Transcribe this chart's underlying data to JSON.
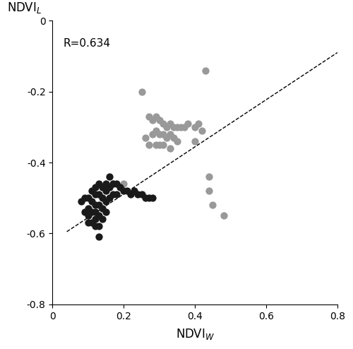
{
  "title": "",
  "xlabel": "NDVI$_{W}$",
  "ylabel": "NDVI$_{L}$",
  "xlim": [
    0,
    0.8
  ],
  "ylim": [
    -0.8,
    0
  ],
  "xticks": [
    0,
    0.2,
    0.4,
    0.6,
    0.8
  ],
  "yticks": [
    0,
    -0.2,
    -0.4,
    -0.6,
    -0.8
  ],
  "R_label": "R=0.634",
  "dashed_line": {
    "x": [
      0.04,
      0.8
    ],
    "y": [
      -0.595,
      -0.09
    ]
  },
  "black_points": [
    [
      0.08,
      -0.51
    ],
    [
      0.09,
      -0.5
    ],
    [
      0.09,
      -0.54
    ],
    [
      0.1,
      -0.5
    ],
    [
      0.1,
      -0.53
    ],
    [
      0.1,
      -0.55
    ],
    [
      0.1,
      -0.57
    ],
    [
      0.11,
      -0.48
    ],
    [
      0.11,
      -0.51
    ],
    [
      0.11,
      -0.54
    ],
    [
      0.11,
      -0.57
    ],
    [
      0.12,
      -0.47
    ],
    [
      0.12,
      -0.49
    ],
    [
      0.12,
      -0.52
    ],
    [
      0.12,
      -0.54
    ],
    [
      0.12,
      -0.56
    ],
    [
      0.12,
      -0.58
    ],
    [
      0.13,
      -0.46
    ],
    [
      0.13,
      -0.49
    ],
    [
      0.13,
      -0.52
    ],
    [
      0.13,
      -0.55
    ],
    [
      0.13,
      -0.58
    ],
    [
      0.13,
      -0.61
    ],
    [
      0.14,
      -0.47
    ],
    [
      0.14,
      -0.5
    ],
    [
      0.14,
      -0.53
    ],
    [
      0.14,
      -0.56
    ],
    [
      0.15,
      -0.46
    ],
    [
      0.15,
      -0.48
    ],
    [
      0.15,
      -0.51
    ],
    [
      0.15,
      -0.54
    ],
    [
      0.16,
      -0.44
    ],
    [
      0.16,
      -0.47
    ],
    [
      0.16,
      -0.5
    ],
    [
      0.17,
      -0.46
    ],
    [
      0.17,
      -0.49
    ],
    [
      0.18,
      -0.46
    ],
    [
      0.18,
      -0.49
    ],
    [
      0.19,
      -0.47
    ],
    [
      0.2,
      -0.48
    ],
    [
      0.21,
      -0.48
    ],
    [
      0.22,
      -0.49
    ],
    [
      0.23,
      -0.48
    ],
    [
      0.24,
      -0.49
    ],
    [
      0.25,
      -0.49
    ],
    [
      0.26,
      -0.5
    ],
    [
      0.27,
      -0.5
    ],
    [
      0.28,
      -0.5
    ]
  ],
  "grey_points": [
    [
      0.17,
      -0.46
    ],
    [
      0.2,
      -0.46
    ],
    [
      0.25,
      -0.2
    ],
    [
      0.26,
      -0.33
    ],
    [
      0.27,
      -0.27
    ],
    [
      0.27,
      -0.35
    ],
    [
      0.28,
      -0.28
    ],
    [
      0.28,
      -0.32
    ],
    [
      0.29,
      -0.27
    ],
    [
      0.29,
      -0.31
    ],
    [
      0.29,
      -0.35
    ],
    [
      0.3,
      -0.28
    ],
    [
      0.3,
      -0.32
    ],
    [
      0.3,
      -0.35
    ],
    [
      0.31,
      -0.29
    ],
    [
      0.31,
      -0.32
    ],
    [
      0.31,
      -0.35
    ],
    [
      0.32,
      -0.3
    ],
    [
      0.32,
      -0.33
    ],
    [
      0.33,
      -0.29
    ],
    [
      0.33,
      -0.32
    ],
    [
      0.33,
      -0.36
    ],
    [
      0.34,
      -0.3
    ],
    [
      0.34,
      -0.33
    ],
    [
      0.35,
      -0.3
    ],
    [
      0.35,
      -0.34
    ],
    [
      0.36,
      -0.3
    ],
    [
      0.37,
      -0.3
    ],
    [
      0.38,
      -0.29
    ],
    [
      0.4,
      -0.3
    ],
    [
      0.4,
      -0.34
    ],
    [
      0.41,
      -0.29
    ],
    [
      0.42,
      -0.31
    ],
    [
      0.43,
      -0.14
    ],
    [
      0.44,
      -0.44
    ],
    [
      0.44,
      -0.48
    ],
    [
      0.45,
      -0.52
    ],
    [
      0.48,
      -0.55
    ]
  ],
  "black_color": "#1a1a1a",
  "grey_color": "#999999",
  "marker_size": 55,
  "background_color": "#ffffff"
}
